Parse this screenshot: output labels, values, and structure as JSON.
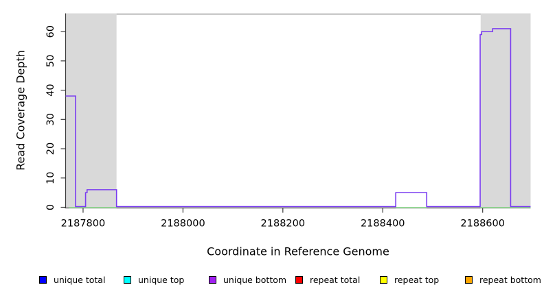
{
  "chart_data": {
    "type": "line",
    "step": true,
    "title": "",
    "xlabel": "Coordinate in Reference Genome",
    "ylabel": "Read Coverage Depth",
    "xlim": [
      2187765,
      2188696
    ],
    "ylim": [
      0,
      66
    ],
    "x_ticks": [
      2187800,
      2188000,
      2188200,
      2188400,
      2188600
    ],
    "y_ticks": [
      0,
      10,
      20,
      30,
      40,
      50,
      60
    ],
    "grid": false,
    "legend_position": "bottom",
    "shaded_regions": [
      {
        "from": 2187765,
        "to": 2187867,
        "color": "#d9d9d9"
      },
      {
        "from": 2188596,
        "to": 2188696,
        "color": "#d9d9d9"
      }
    ],
    "baseline_overlap": {
      "color": "#8ce68c",
      "segments": [
        [
          2187772,
          2187867
        ],
        [
          2188426,
          2188488
        ],
        [
          2188595,
          2188696
        ]
      ]
    },
    "series": [
      {
        "name": "unique total",
        "color": "#0000ff",
        "steps": [
          [
            2187765,
            0
          ],
          [
            2188696,
            0
          ]
        ]
      },
      {
        "name": "unique top",
        "color": "#00ffff",
        "steps": [
          [
            2187765,
            0
          ],
          [
            2188696,
            0
          ]
        ]
      },
      {
        "name": "unique bottom",
        "color": "#a020f0",
        "line_color": "#7a3cf0",
        "steps": [
          [
            2187765,
            38
          ],
          [
            2187785,
            0
          ],
          [
            2187805,
            5
          ],
          [
            2187808,
            6
          ],
          [
            2187867,
            0
          ],
          [
            2188426,
            5
          ],
          [
            2188488,
            0
          ],
          [
            2188595,
            59
          ],
          [
            2188598,
            60
          ],
          [
            2188620,
            61
          ],
          [
            2188656,
            0
          ],
          [
            2188696,
            0
          ]
        ]
      },
      {
        "name": "repeat total",
        "color": "#ff0000",
        "steps": [
          [
            2187765,
            0
          ],
          [
            2188696,
            0
          ]
        ]
      },
      {
        "name": "repeat top",
        "color": "#ffff00",
        "steps": [
          [
            2187765,
            0
          ],
          [
            2188696,
            0
          ]
        ]
      },
      {
        "name": "repeat bottom",
        "color": "#ffa500",
        "steps": [
          [
            2187765,
            0
          ],
          [
            2188696,
            0
          ]
        ]
      }
    ]
  },
  "legend": {
    "items": [
      {
        "label": "unique total",
        "color": "#0000ff"
      },
      {
        "label": "unique top",
        "color": "#00ffff"
      },
      {
        "label": "unique bottom",
        "color": "#a020f0"
      },
      {
        "label": "repeat total",
        "color": "#ff0000"
      },
      {
        "label": "repeat top",
        "color": "#ffff00"
      },
      {
        "label": "repeat bottom",
        "color": "#ffa500"
      }
    ]
  },
  "colors": {
    "plot_background": "#ffffff",
    "shaded_region": "#d9d9d9",
    "axis": "#3a3a3a",
    "frame_top": "#808080",
    "coverage_line": "#7a3cf0",
    "baseline_overlap": "#8ce68c"
  }
}
